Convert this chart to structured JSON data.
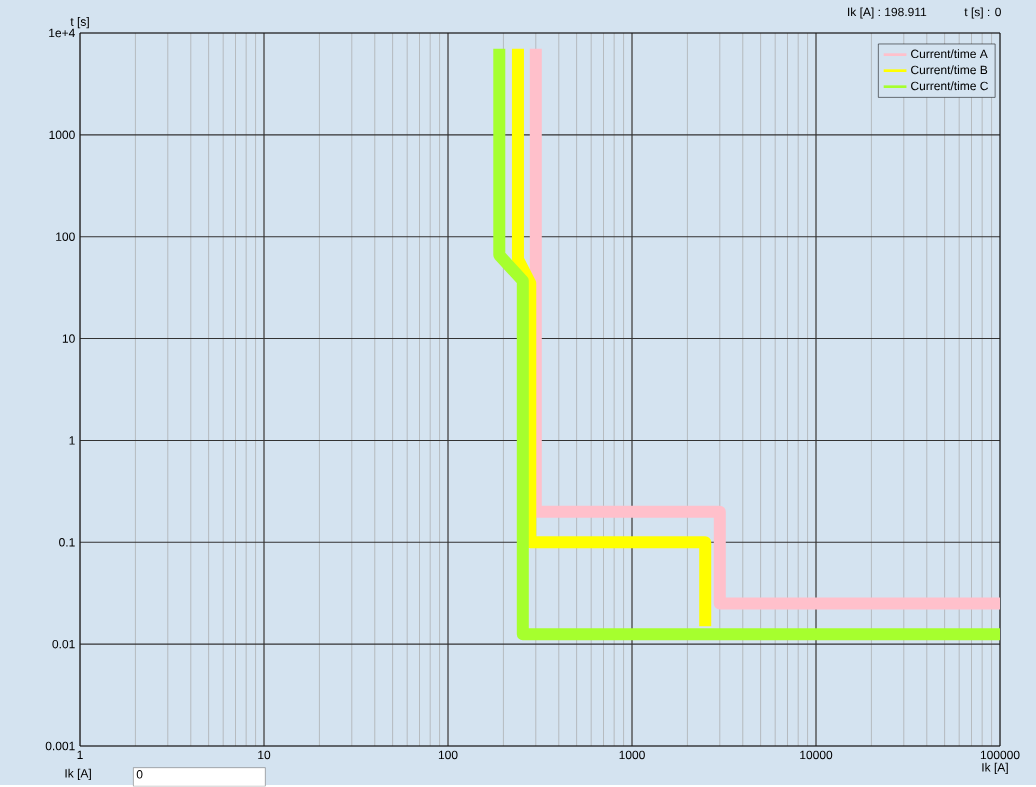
{
  "chart_data": {
    "type": "line",
    "xlabel": "Ik [A]",
    "ylabel": "t [s]",
    "log": "xy",
    "grid": true,
    "legend": "top right",
    "xlim": [
      1,
      100000
    ],
    "ylim": [
      0.001,
      10000
    ],
    "xticks": [
      1,
      10,
      100,
      1000,
      10000,
      100000
    ],
    "yticks": [
      {
        "value": 10000,
        "label": "1e+4"
      },
      1000,
      100,
      10,
      1,
      0.1,
      0.01,
      0.001
    ],
    "annotations": [
      "Ik [A] : 198.911",
      "t [s] : 0",
      "Ik [A]",
      "0"
    ],
    "series": [
      {
        "name": "Current/time A",
        "color": "#ffc0cb",
        "x": [
          300,
          300,
          3000,
          3000,
          100000
        ],
        "values": [
          7000,
          0.2,
          0.2,
          0.025,
          0.025
        ]
      },
      {
        "name": "Current/time B",
        "color": "#ffff00",
        "x": [
          240,
          240,
          280,
          280,
          2500,
          2500
        ],
        "values": [
          7000,
          60,
          35,
          0.1,
          0.1,
          0.015
        ]
      },
      {
        "name": "Current/time C",
        "color": "#a6ff2e",
        "x": [
          190,
          190,
          255,
          255,
          100000
        ],
        "values": [
          7000,
          66,
          37,
          0.0125,
          0.0125
        ]
      }
    ]
  }
}
